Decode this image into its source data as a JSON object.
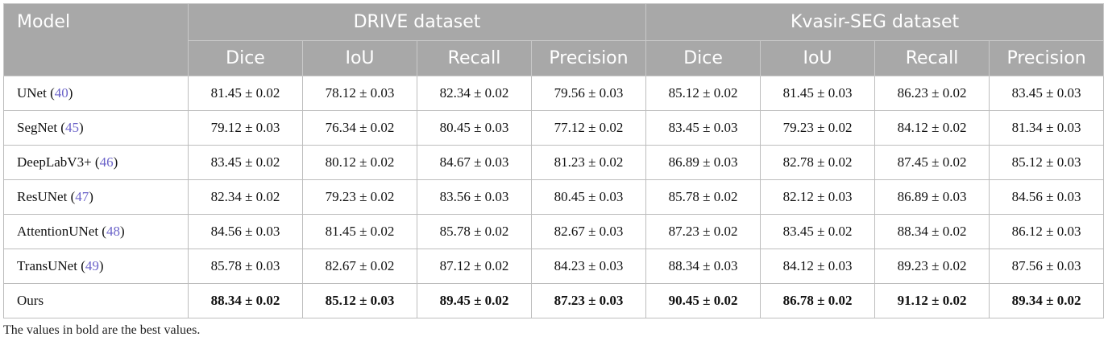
{
  "header": {
    "model_label": "Model",
    "datasets": [
      "DRIVE dataset",
      "Kvasir-SEG dataset"
    ],
    "metrics": [
      "Dice",
      "IoU",
      "Recall",
      "Precision",
      "Dice",
      "IoU",
      "Recall",
      "Precision"
    ]
  },
  "rows": [
    {
      "model": "UNet",
      "ref": "40",
      "values": [
        "81.45 ± 0.02",
        "78.12 ± 0.03",
        "82.34 ± 0.02",
        "79.56 ± 0.03",
        "85.12 ± 0.02",
        "81.45 ± 0.03",
        "86.23 ± 0.02",
        "83.45 ± 0.03"
      ]
    },
    {
      "model": "SegNet",
      "ref": "45",
      "values": [
        "79.12 ± 0.03",
        "76.34 ± 0.02",
        "80.45 ± 0.03",
        "77.12 ± 0.02",
        "83.45 ± 0.03",
        "79.23 ± 0.02",
        "84.12 ± 0.02",
        "81.34 ± 0.03"
      ]
    },
    {
      "model": "DeepLabV3+",
      "ref": "46",
      "values": [
        "83.45 ± 0.02",
        "80.12 ± 0.02",
        "84.67 ± 0.03",
        "81.23 ± 0.02",
        "86.89 ± 0.03",
        "82.78 ± 0.02",
        "87.45 ± 0.02",
        "85.12 ± 0.03"
      ]
    },
    {
      "model": "ResUNet",
      "ref": "47",
      "values": [
        "82.34 ± 0.02",
        "79.23 ± 0.02",
        "83.56 ± 0.03",
        "80.45 ± 0.03",
        "85.78 ± 0.02",
        "82.12 ± 0.03",
        "86.89 ± 0.03",
        "84.56 ± 0.03"
      ]
    },
    {
      "model": "AttentionUNet",
      "ref": "48",
      "values": [
        "84.56 ± 0.03",
        "81.45 ± 0.02",
        "85.78 ± 0.02",
        "82.67 ± 0.03",
        "87.23 ± 0.02",
        "83.45 ± 0.02",
        "88.34 ± 0.02",
        "86.12 ± 0.03"
      ]
    },
    {
      "model": "TransUNet",
      "ref": "49",
      "values": [
        "85.78 ± 0.03",
        "82.67 ± 0.02",
        "87.12 ± 0.02",
        "84.23 ± 0.03",
        "88.34 ± 0.03",
        "84.12 ± 0.03",
        "89.23 ± 0.02",
        "87.56 ± 0.03"
      ]
    },
    {
      "model": "Ours",
      "ref": "",
      "values": [
        "88.34 ± 0.02",
        "85.12 ± 0.03",
        "89.45 ± 0.02",
        "87.23 ± 0.03",
        "90.45 ± 0.02",
        "86.78 ± 0.02",
        "91.12 ± 0.02",
        "89.34 ± 0.02"
      ],
      "bold": true
    }
  ],
  "footnote": "The values in bold are the best values.",
  "colors": {
    "header_bg": "#a8a8a8",
    "header_text": "#ffffff",
    "reference_link": "#6b63c9"
  }
}
